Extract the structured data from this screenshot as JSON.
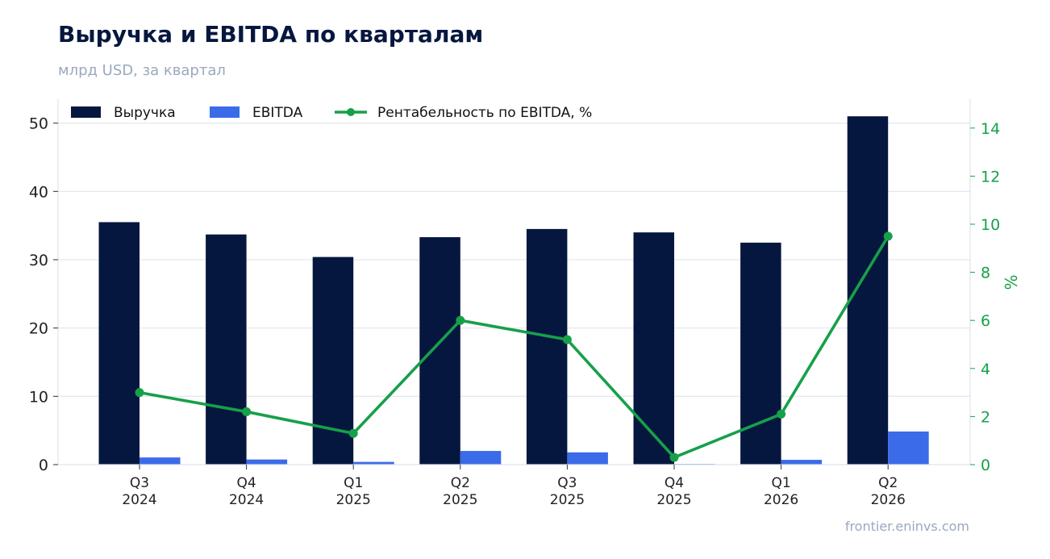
{
  "header": {
    "title": "Выручка и EBITDA по кварталам",
    "subtitle": "млрд USD, за квартал"
  },
  "footer": {
    "source": "frontier.eninvs.com"
  },
  "chart_data": {
    "type": "bar",
    "categories": [
      [
        "Q3",
        "2024"
      ],
      [
        "Q4",
        "2024"
      ],
      [
        "Q1",
        "2025"
      ],
      [
        "Q2",
        "2025"
      ],
      [
        "Q3",
        "2025"
      ],
      [
        "Q4",
        "2025"
      ],
      [
        "Q1",
        "2026"
      ],
      [
        "Q2",
        "2026"
      ]
    ],
    "series": [
      {
        "name": "Выручка",
        "type": "bar",
        "axis": "left",
        "color": "#06173f",
        "values": [
          35.5,
          33.7,
          30.4,
          33.3,
          34.5,
          34.0,
          32.5,
          51.0
        ]
      },
      {
        "name": "EBITDA",
        "type": "bar",
        "axis": "left",
        "color": "#3b6be8",
        "values": [
          1.05,
          0.75,
          0.4,
          2.0,
          1.8,
          0.1,
          0.7,
          4.85
        ]
      },
      {
        "name": "Рентабельность по EBITDA, %",
        "type": "line",
        "axis": "right",
        "color": "#16a04a",
        "values": [
          3.0,
          2.2,
          1.3,
          6.0,
          5.2,
          0.3,
          2.1,
          9.5
        ]
      }
    ],
    "y_left": {
      "label": "",
      "ylim": [
        0,
        53.5
      ],
      "ticks": [
        0,
        10,
        20,
        30,
        40,
        50
      ]
    },
    "y_right": {
      "label": "%",
      "ylim": [
        0,
        15.2
      ],
      "ticks": [
        0,
        2,
        4,
        6,
        8,
        10,
        12,
        14
      ]
    },
    "grid": true,
    "legend_position": "top-left"
  }
}
